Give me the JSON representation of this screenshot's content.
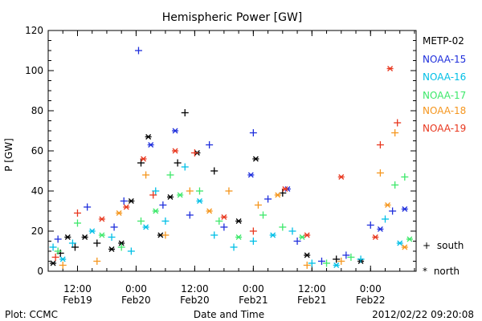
{
  "footer": {
    "left": "Plot: CCMC",
    "right": "2012/02/22 09:20:08"
  },
  "chart_data": {
    "type": "scatter",
    "title": "Hemispheric Power [GW]",
    "xlabel": "Date and Time",
    "ylabel": "P [GW]",
    "ylim": [
      0,
      120
    ],
    "yticks": [
      0,
      20,
      40,
      60,
      80,
      100,
      120
    ],
    "xlim": [
      "2012-02-19T06:00",
      "2012-02-22T09:20"
    ],
    "xticks": [
      {
        "x": "2012-02-19T12:00",
        "time": "12:00",
        "date": "Feb19"
      },
      {
        "x": "2012-02-20T00:00",
        "time": "0:00",
        "date": "Feb20"
      },
      {
        "x": "2012-02-20T12:00",
        "time": "12:00",
        "date": "Feb20"
      },
      {
        "x": "2012-02-21T00:00",
        "time": "0:00",
        "date": "Feb21"
      },
      {
        "x": "2012-02-21T12:00",
        "time": "12:00",
        "date": "Feb21"
      },
      {
        "x": "2012-02-22T00:00",
        "time": "0:00",
        "date": "Feb22"
      }
    ],
    "grid": false,
    "legend_position": "right",
    "marker_legend": [
      {
        "symbol": "+",
        "label": "south"
      },
      {
        "symbol": "*",
        "label": "north"
      }
    ],
    "series": [
      {
        "name": "METP-02",
        "color": "#000000",
        "points": [
          [
            "2012-02-19T07:00",
            4,
            "*"
          ],
          [
            "2012-02-19T08:30",
            9,
            "+"
          ],
          [
            "2012-02-19T10:00",
            17,
            "*"
          ],
          [
            "2012-02-19T11:30",
            12,
            "+"
          ],
          [
            "2012-02-19T13:30",
            17,
            "*"
          ],
          [
            "2012-02-19T16:00",
            14,
            "+"
          ],
          [
            "2012-02-19T19:00",
            11,
            "*"
          ],
          [
            "2012-02-19T21:00",
            14,
            "*"
          ],
          [
            "2012-02-19T23:00",
            35,
            "*"
          ],
          [
            "2012-02-20T01:00",
            54,
            "+"
          ],
          [
            "2012-02-20T02:30",
            67,
            "*"
          ],
          [
            "2012-02-20T05:00",
            18,
            "*"
          ],
          [
            "2012-02-20T07:00",
            37,
            "*"
          ],
          [
            "2012-02-20T08:30",
            54,
            "+"
          ],
          [
            "2012-02-20T10:00",
            79,
            "+"
          ],
          [
            "2012-02-20T12:30",
            59,
            "*"
          ],
          [
            "2012-02-20T16:00",
            50,
            "+"
          ],
          [
            "2012-02-20T21:00",
            25,
            "*"
          ],
          [
            "2012-02-21T00:30",
            56,
            "*"
          ],
          [
            "2012-02-21T06:00",
            39,
            "+"
          ],
          [
            "2012-02-21T11:00",
            8,
            "*"
          ],
          [
            "2012-02-21T17:00",
            6,
            "+"
          ],
          [
            "2012-02-21T22:00",
            5,
            "*"
          ]
        ]
      },
      {
        "name": "NOAA-15",
        "color": "#1f2fdc",
        "points": [
          [
            "2012-02-19T08:00",
            16,
            "+"
          ],
          [
            "2012-02-19T14:00",
            32,
            "+"
          ],
          [
            "2012-02-19T19:30",
            22,
            "+"
          ],
          [
            "2012-02-19T21:30",
            35,
            "+"
          ],
          [
            "2012-02-20T00:30",
            110,
            "+"
          ],
          [
            "2012-02-20T03:00",
            63,
            "*"
          ],
          [
            "2012-02-20T05:30",
            33,
            "+"
          ],
          [
            "2012-02-20T08:00",
            70,
            "*"
          ],
          [
            "2012-02-20T11:00",
            28,
            "+"
          ],
          [
            "2012-02-20T15:00",
            63,
            "+"
          ],
          [
            "2012-02-20T18:00",
            22,
            "+"
          ],
          [
            "2012-02-20T23:30",
            48,
            "*"
          ],
          [
            "2012-02-21T00:00",
            69,
            "+"
          ],
          [
            "2012-02-21T03:00",
            36,
            "+"
          ],
          [
            "2012-02-21T07:00",
            41,
            "*"
          ],
          [
            "2012-02-21T09:00",
            15,
            "+"
          ],
          [
            "2012-02-21T14:00",
            5,
            "+"
          ],
          [
            "2012-02-21T19:00",
            8,
            "+"
          ],
          [
            "2012-02-22T00:00",
            23,
            "+"
          ],
          [
            "2012-02-22T02:00",
            21,
            "*"
          ],
          [
            "2012-02-22T04:30",
            30,
            "+"
          ],
          [
            "2012-02-22T07:00",
            31,
            "*"
          ]
        ]
      },
      {
        "name": "NOAA-16",
        "color": "#00bfe6",
        "points": [
          [
            "2012-02-19T07:00",
            12,
            "+"
          ],
          [
            "2012-02-19T09:00",
            6,
            "*"
          ],
          [
            "2012-02-19T11:00",
            14,
            "+"
          ],
          [
            "2012-02-19T15:00",
            20,
            "*"
          ],
          [
            "2012-02-19T19:00",
            17,
            "+"
          ],
          [
            "2012-02-19T23:00",
            10,
            "+"
          ],
          [
            "2012-02-20T02:00",
            22,
            "*"
          ],
          [
            "2012-02-20T04:00",
            40,
            "+"
          ],
          [
            "2012-02-20T06:00",
            25,
            "+"
          ],
          [
            "2012-02-20T10:00",
            52,
            "+"
          ],
          [
            "2012-02-20T13:00",
            35,
            "*"
          ],
          [
            "2012-02-20T16:00",
            18,
            "+"
          ],
          [
            "2012-02-20T20:00",
            12,
            "+"
          ],
          [
            "2012-02-21T00:00",
            15,
            "+"
          ],
          [
            "2012-02-21T04:00",
            18,
            "*"
          ],
          [
            "2012-02-21T08:00",
            20,
            "+"
          ],
          [
            "2012-02-21T12:00",
            4,
            "+"
          ],
          [
            "2012-02-21T17:00",
            3,
            "*"
          ],
          [
            "2012-02-21T22:00",
            6,
            "+"
          ],
          [
            "2012-02-22T03:00",
            26,
            "+"
          ],
          [
            "2012-02-22T06:00",
            14,
            "*"
          ]
        ]
      },
      {
        "name": "NOAA-17",
        "color": "#3de86a",
        "points": [
          [
            "2012-02-19T08:00",
            10,
            "+"
          ],
          [
            "2012-02-19T12:00",
            24,
            "+"
          ],
          [
            "2012-02-19T17:00",
            18,
            "*"
          ],
          [
            "2012-02-19T21:00",
            12,
            "+"
          ],
          [
            "2012-02-20T01:00",
            25,
            "+"
          ],
          [
            "2012-02-20T04:00",
            30,
            "*"
          ],
          [
            "2012-02-20T07:00",
            48,
            "+"
          ],
          [
            "2012-02-20T09:00",
            38,
            "*"
          ],
          [
            "2012-02-20T13:00",
            40,
            "+"
          ],
          [
            "2012-02-20T17:00",
            25,
            "+"
          ],
          [
            "2012-02-20T21:00",
            17,
            "*"
          ],
          [
            "2012-02-21T02:00",
            28,
            "+"
          ],
          [
            "2012-02-21T06:00",
            22,
            "+"
          ],
          [
            "2012-02-21T10:00",
            17,
            "*"
          ],
          [
            "2012-02-21T15:00",
            4,
            "+"
          ],
          [
            "2012-02-21T20:00",
            7,
            "+"
          ],
          [
            "2012-02-22T05:00",
            43,
            "+"
          ],
          [
            "2012-02-22T07:00",
            47,
            "+"
          ],
          [
            "2012-02-22T08:00",
            16,
            "*"
          ]
        ]
      },
      {
        "name": "NOAA-18",
        "color": "#f5961e",
        "points": [
          [
            "2012-02-19T09:00",
            3,
            "+"
          ],
          [
            "2012-02-19T16:00",
            5,
            "+"
          ],
          [
            "2012-02-19T20:30",
            29,
            "*"
          ],
          [
            "2012-02-20T02:00",
            48,
            "+"
          ],
          [
            "2012-02-20T06:00",
            18,
            "+"
          ],
          [
            "2012-02-20T11:00",
            40,
            "+"
          ],
          [
            "2012-02-20T15:00",
            30,
            "*"
          ],
          [
            "2012-02-20T19:00",
            40,
            "+"
          ],
          [
            "2012-02-21T01:00",
            33,
            "+"
          ],
          [
            "2012-02-21T05:00",
            38,
            "*"
          ],
          [
            "2012-02-21T11:00",
            3,
            "+"
          ],
          [
            "2012-02-21T18:00",
            5,
            "+"
          ],
          [
            "2012-02-22T02:00",
            49,
            "+"
          ],
          [
            "2012-02-22T03:30",
            33,
            "*"
          ],
          [
            "2012-02-22T05:00",
            69,
            "+"
          ],
          [
            "2012-02-22T07:00",
            12,
            "*"
          ]
        ]
      },
      {
        "name": "NOAA-19",
        "color": "#e8371e",
        "points": [
          [
            "2012-02-19T07:30",
            7,
            "+"
          ],
          [
            "2012-02-19T12:00",
            29,
            "+"
          ],
          [
            "2012-02-19T17:00",
            26,
            "*"
          ],
          [
            "2012-02-19T22:00",
            32,
            "*"
          ],
          [
            "2012-02-20T01:30",
            56,
            "*"
          ],
          [
            "2012-02-20T03:30",
            38,
            "+"
          ],
          [
            "2012-02-20T08:00",
            60,
            "*"
          ],
          [
            "2012-02-20T12:00",
            59,
            "+"
          ],
          [
            "2012-02-20T18:00",
            27,
            "*"
          ],
          [
            "2012-02-21T00:00",
            20,
            "+"
          ],
          [
            "2012-02-21T06:30",
            41,
            "*"
          ],
          [
            "2012-02-21T11:00",
            18,
            "*"
          ],
          [
            "2012-02-21T18:00",
            47,
            "*"
          ],
          [
            "2012-02-22T01:00",
            17,
            "*"
          ],
          [
            "2012-02-22T02:00",
            63,
            "+"
          ],
          [
            "2012-02-22T04:00",
            101,
            "*"
          ],
          [
            "2012-02-22T05:30",
            74,
            "+"
          ]
        ]
      }
    ]
  }
}
